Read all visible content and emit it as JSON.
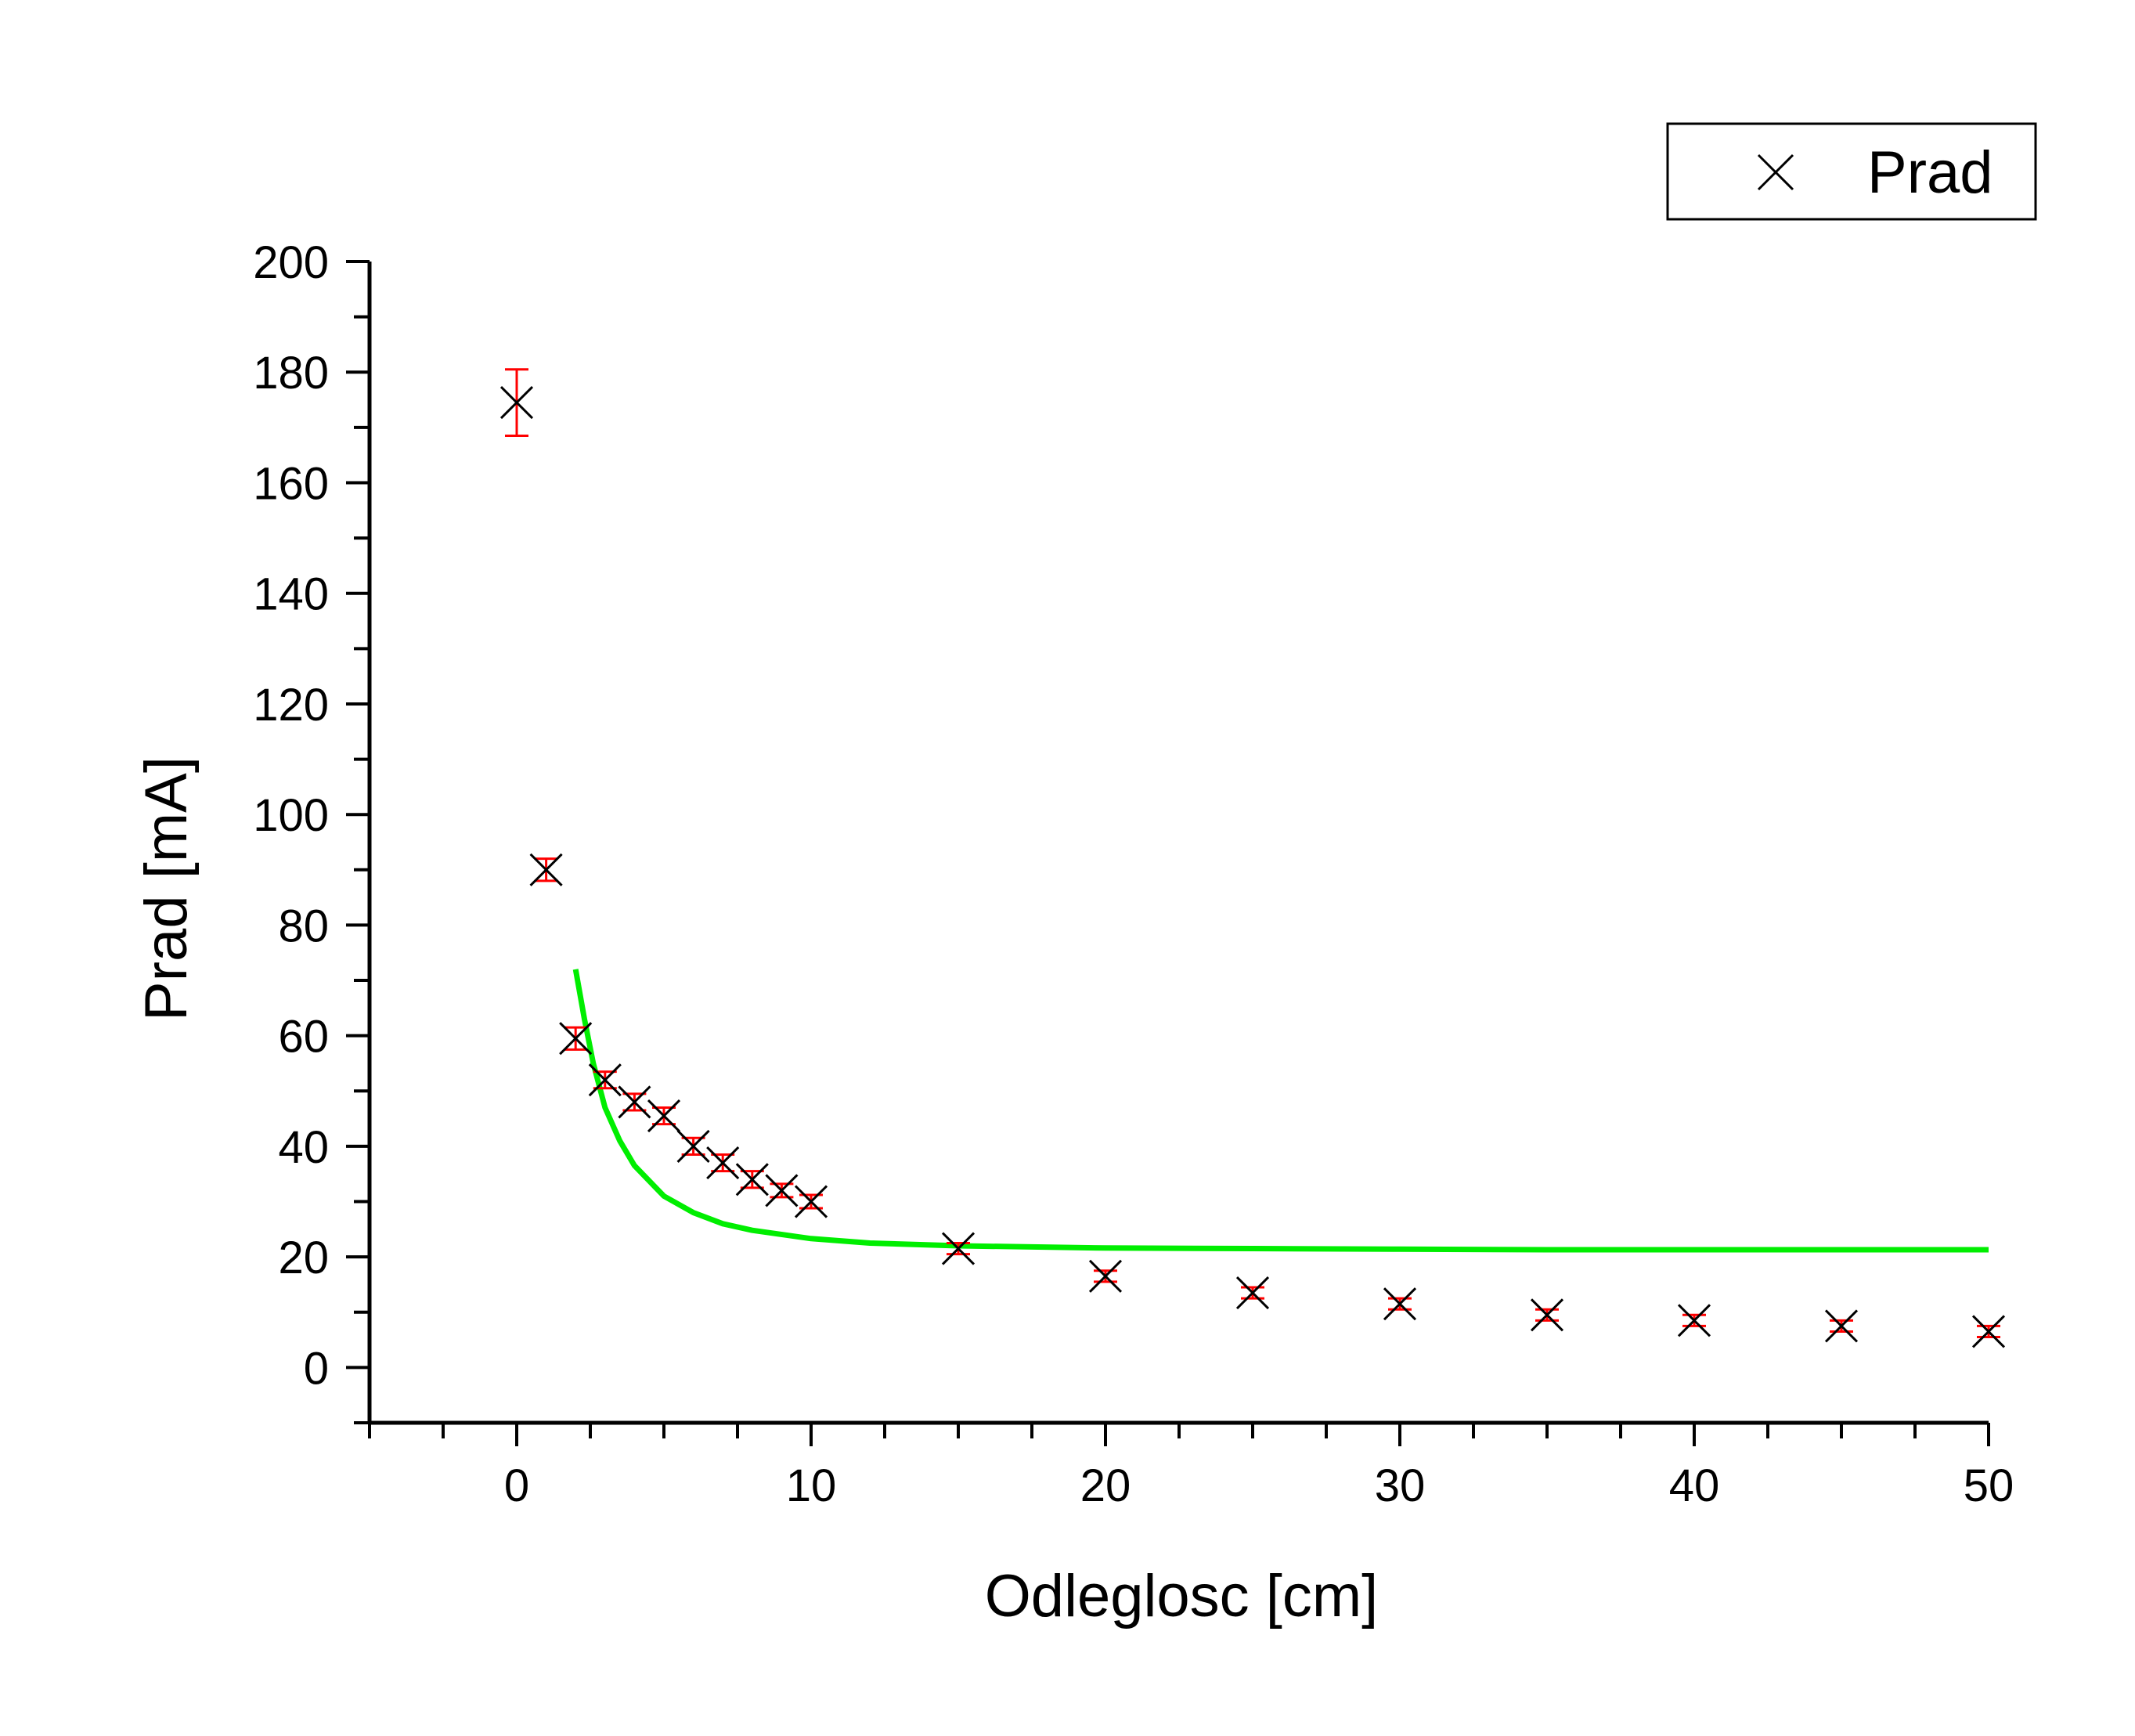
{
  "chart_data": {
    "type": "scatter",
    "xlabel": "Odleglosc [cm]",
    "ylabel": "Prad [mA]",
    "xlim": [
      -5,
      50
    ],
    "ylim": [
      -10,
      200
    ],
    "xticks": [
      0,
      10,
      20,
      30,
      40,
      50
    ],
    "yticks": [
      0,
      20,
      40,
      60,
      80,
      100,
      120,
      140,
      160,
      180,
      200
    ],
    "grid": false,
    "legend": {
      "position": "top-right",
      "entries": [
        "Prad"
      ]
    },
    "series": [
      {
        "name": "Prad",
        "marker": "x",
        "color": "#000000",
        "errorbar_color": "#ff0000",
        "points": [
          {
            "x": 0,
            "y": 174.5,
            "err": 6
          },
          {
            "x": 1,
            "y": 90,
            "err": 2
          },
          {
            "x": 2,
            "y": 59.5,
            "err": 2
          },
          {
            "x": 3,
            "y": 52,
            "err": 1.5
          },
          {
            "x": 4,
            "y": 48,
            "err": 1.5
          },
          {
            "x": 5,
            "y": 45.5,
            "err": 1.5
          },
          {
            "x": 6,
            "y": 40,
            "err": 1.5
          },
          {
            "x": 7,
            "y": 37,
            "err": 1.5
          },
          {
            "x": 8,
            "y": 34,
            "err": 1.5
          },
          {
            "x": 9,
            "y": 32,
            "err": 1.2
          },
          {
            "x": 10,
            "y": 30,
            "err": 1.2
          },
          {
            "x": 15,
            "y": 21.5,
            "err": 1
          },
          {
            "x": 20,
            "y": 16.5,
            "err": 1
          },
          {
            "x": 25,
            "y": 13.5,
            "err": 1
          },
          {
            "x": 30,
            "y": 11.5,
            "err": 1
          },
          {
            "x": 35,
            "y": 9.5,
            "err": 1
          },
          {
            "x": 40,
            "y": 8.5,
            "err": 1
          },
          {
            "x": 45,
            "y": 7.5,
            "err": 1
          },
          {
            "x": 50,
            "y": 6.5,
            "err": 1
          }
        ]
      },
      {
        "marker": "line",
        "color": "#00ee00",
        "points": [
          {
            "x": 2,
            "y": 72
          },
          {
            "x": 2.3,
            "y": 63
          },
          {
            "x": 2.6,
            "y": 55
          },
          {
            "x": 3,
            "y": 47
          },
          {
            "x": 3.5,
            "y": 41
          },
          {
            "x": 4,
            "y": 36.5
          },
          {
            "x": 5,
            "y": 31
          },
          {
            "x": 6,
            "y": 28
          },
          {
            "x": 7,
            "y": 26
          },
          {
            "x": 8,
            "y": 24.8
          },
          {
            "x": 10,
            "y": 23.3
          },
          {
            "x": 12,
            "y": 22.5
          },
          {
            "x": 15,
            "y": 22
          },
          {
            "x": 20,
            "y": 21.6
          },
          {
            "x": 25,
            "y": 21.5
          },
          {
            "x": 30,
            "y": 21.4
          },
          {
            "x": 35,
            "y": 21.3
          },
          {
            "x": 40,
            "y": 21.3
          },
          {
            "x": 45,
            "y": 21.3
          },
          {
            "x": 50,
            "y": 21.3
          }
        ]
      }
    ]
  }
}
